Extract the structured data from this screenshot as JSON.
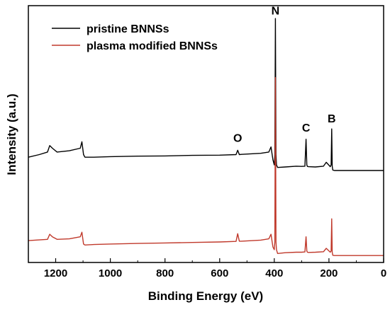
{
  "chart_data": {
    "type": "line",
    "xlabel": "Binding Energy (eV)",
    "ylabel": "Intensity (a.u.)",
    "xlim": [
      1300,
      0
    ],
    "x_reversed": true,
    "x_ticks": [
      1200,
      1000,
      800,
      600,
      400,
      200,
      0
    ],
    "y_ticks_shown": false,
    "grid": false,
    "legend_position": "top-left",
    "legend": [
      {
        "label": "pristine BNNSs",
        "color": "#000000"
      },
      {
        "label": "plasma modified BNNSs",
        "color": "#c0392b"
      }
    ],
    "y_domain": [
      0,
      1
    ],
    "series": [
      {
        "name": "pristine BNNSs",
        "color": "#000000",
        "x": [
          1300,
          1260,
          1230,
          1222,
          1212,
          1195,
          1150,
          1110,
          1104,
          1098,
          1093,
          1060,
          1000,
          900,
          800,
          700,
          600,
          540,
          534,
          528,
          520,
          450,
          420,
          412,
          405,
          400,
          398,
          396,
          394,
          392,
          388,
          360,
          320,
          300,
          288,
          284,
          281,
          279,
          275,
          250,
          220,
          210,
          195,
          192,
          190,
          188,
          186,
          180,
          150,
          100,
          50,
          0
        ],
        "y": [
          0.41,
          0.42,
          0.43,
          0.455,
          0.445,
          0.43,
          0.435,
          0.445,
          0.47,
          0.42,
          0.41,
          0.41,
          0.412,
          0.414,
          0.415,
          0.417,
          0.418,
          0.42,
          0.437,
          0.42,
          0.421,
          0.425,
          0.43,
          0.45,
          0.4,
          0.38,
          0.42,
          0.95,
          0.42,
          0.38,
          0.37,
          0.372,
          0.375,
          0.374,
          0.375,
          0.48,
          0.38,
          0.374,
          0.373,
          0.372,
          0.375,
          0.39,
          0.373,
          0.38,
          0.52,
          0.375,
          0.36,
          0.358,
          0.358,
          0.358,
          0.358,
          0.358
        ]
      },
      {
        "name": "plasma modified BNNSs",
        "color": "#c0392b",
        "x": [
          1300,
          1260,
          1230,
          1222,
          1212,
          1195,
          1150,
          1110,
          1104,
          1098,
          1093,
          1060,
          1000,
          900,
          800,
          700,
          600,
          540,
          534,
          528,
          520,
          450,
          420,
          412,
          405,
          400,
          398,
          396,
          394,
          392,
          388,
          360,
          320,
          300,
          288,
          284,
          281,
          279,
          275,
          250,
          220,
          210,
          195,
          192,
          190,
          188,
          186,
          180,
          150,
          100,
          50,
          0
        ],
        "y": [
          0.085,
          0.088,
          0.09,
          0.11,
          0.1,
          0.09,
          0.092,
          0.1,
          0.118,
          0.072,
          0.068,
          0.07,
          0.072,
          0.074,
          0.076,
          0.078,
          0.08,
          0.082,
          0.112,
          0.083,
          0.083,
          0.087,
          0.092,
          0.11,
          0.06,
          0.05,
          0.08,
          0.72,
          0.08,
          0.05,
          0.035,
          0.038,
          0.04,
          0.04,
          0.041,
          0.1,
          0.045,
          0.04,
          0.039,
          0.04,
          0.042,
          0.055,
          0.04,
          0.045,
          0.17,
          0.04,
          0.028,
          0.027,
          0.027,
          0.027,
          0.027,
          0.027
        ]
      }
    ],
    "annotations": [
      {
        "text": "N",
        "x": 396,
        "y": 0.965
      },
      {
        "text": "O",
        "x": 534,
        "y": 0.47
      },
      {
        "text": "C",
        "x": 284,
        "y": 0.51
      },
      {
        "text": "B",
        "x": 190,
        "y": 0.545
      }
    ]
  }
}
